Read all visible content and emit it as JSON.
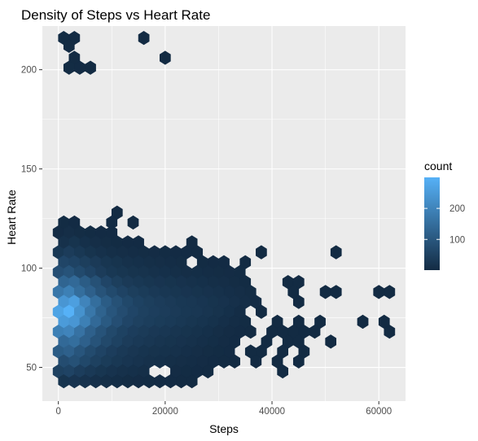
{
  "chart_data": {
    "type": "hexbin",
    "title": "Density of Steps vs Heart Rate",
    "xlabel": "Steps",
    "ylabel": "Heart Rate",
    "xlim": [
      -3000,
      65000
    ],
    "ylim": [
      33,
      222
    ],
    "xticks": [
      0,
      20000,
      40000,
      60000
    ],
    "xtick_labels": [
      "0",
      "20000",
      "40000",
      "60000"
    ],
    "yticks": [
      50,
      100,
      150,
      200
    ],
    "ytick_labels": [
      "50",
      "100",
      "150",
      "200"
    ],
    "grid": true,
    "panel_background": "#ebebeb",
    "grid_color": "#ffffff",
    "legend": {
      "title": "count",
      "position": "right",
      "min": 1,
      "max": 300,
      "breaks": [
        100,
        200
      ],
      "break_labels": [
        "100",
        "200"
      ],
      "low_color": "#132b43",
      "high_color": "#56b1f7"
    },
    "bin_size": {
      "x": 2000,
      "y": 2.5
    },
    "bins": [
      [
        1000,
        216,
        3
      ],
      [
        3000,
        216,
        2
      ],
      [
        2000,
        212,
        1
      ],
      [
        3000,
        206,
        1
      ],
      [
        2000,
        201,
        3
      ],
      [
        4000,
        201,
        2
      ],
      [
        6000,
        201,
        1
      ],
      [
        16000,
        216,
        1
      ],
      [
        20000,
        206,
        1
      ],
      [
        1000,
        123,
        3
      ],
      [
        3000,
        123,
        2
      ],
      [
        11000,
        128,
        1
      ],
      [
        10000,
        123,
        2
      ],
      [
        14000,
        123,
        1
      ],
      [
        0,
        118,
        4
      ],
      [
        2000,
        118,
        8
      ],
      [
        4000,
        118,
        5
      ],
      [
        6000,
        118,
        3
      ],
      [
        8000,
        118,
        2
      ],
      [
        10000,
        118,
        2
      ],
      [
        1000,
        113,
        15
      ],
      [
        3000,
        113,
        20
      ],
      [
        5000,
        113,
        12
      ],
      [
        7000,
        113,
        8
      ],
      [
        9000,
        113,
        5
      ],
      [
        11000,
        113,
        3
      ],
      [
        13000,
        113,
        2
      ],
      [
        15000,
        113,
        2
      ],
      [
        25000,
        113,
        1
      ],
      [
        0,
        108,
        30
      ],
      [
        2000,
        108,
        40
      ],
      [
        4000,
        108,
        30
      ],
      [
        6000,
        108,
        20
      ],
      [
        8000,
        108,
        15
      ],
      [
        10000,
        108,
        10
      ],
      [
        12000,
        108,
        8
      ],
      [
        14000,
        108,
        6
      ],
      [
        16000,
        108,
        5
      ],
      [
        18000,
        108,
        4
      ],
      [
        20000,
        108,
        3
      ],
      [
        22000,
        108,
        2
      ],
      [
        24000,
        108,
        2
      ],
      [
        26000,
        108,
        1
      ],
      [
        38000,
        108,
        1
      ],
      [
        52000,
        108,
        1
      ],
      [
        1000,
        103,
        60
      ],
      [
        3000,
        103,
        55
      ],
      [
        5000,
        103,
        45
      ],
      [
        7000,
        103,
        35
      ],
      [
        9000,
        103,
        25
      ],
      [
        11000,
        103,
        20
      ],
      [
        13000,
        103,
        15
      ],
      [
        15000,
        103,
        12
      ],
      [
        17000,
        103,
        10
      ],
      [
        19000,
        103,
        8
      ],
      [
        21000,
        103,
        6
      ],
      [
        23000,
        103,
        5
      ],
      [
        27000,
        103,
        3
      ],
      [
        29000,
        103,
        2
      ],
      [
        31000,
        103,
        2
      ],
      [
        35000,
        103,
        1
      ],
      [
        0,
        98,
        80
      ],
      [
        2000,
        98,
        90
      ],
      [
        4000,
        98,
        70
      ],
      [
        6000,
        98,
        55
      ],
      [
        8000,
        98,
        40
      ],
      [
        10000,
        98,
        30
      ],
      [
        12000,
        98,
        25
      ],
      [
        14000,
        98,
        20
      ],
      [
        16000,
        98,
        18
      ],
      [
        18000,
        98,
        15
      ],
      [
        20000,
        98,
        12
      ],
      [
        22000,
        98,
        10
      ],
      [
        24000,
        98,
        8
      ],
      [
        26000,
        98,
        7
      ],
      [
        28000,
        98,
        6
      ],
      [
        30000,
        98,
        5
      ],
      [
        32000,
        98,
        4
      ],
      [
        34000,
        98,
        3
      ],
      [
        1000,
        93,
        130
      ],
      [
        3000,
        93,
        140
      ],
      [
        5000,
        93,
        110
      ],
      [
        7000,
        93,
        85
      ],
      [
        9000,
        93,
        60
      ],
      [
        11000,
        93,
        45
      ],
      [
        13000,
        93,
        35
      ],
      [
        15000,
        93,
        30
      ],
      [
        17000,
        93,
        25
      ],
      [
        19000,
        93,
        22
      ],
      [
        21000,
        93,
        20
      ],
      [
        23000,
        93,
        17
      ],
      [
        25000,
        93,
        15
      ],
      [
        27000,
        93,
        12
      ],
      [
        29000,
        93,
        10
      ],
      [
        31000,
        93,
        8
      ],
      [
        33000,
        93,
        5
      ],
      [
        35000,
        93,
        3
      ],
      [
        43000,
        93,
        1
      ],
      [
        45000,
        93,
        1
      ],
      [
        0,
        88,
        170
      ],
      [
        2000,
        88,
        190
      ],
      [
        4000,
        88,
        150
      ],
      [
        6000,
        88,
        120
      ],
      [
        8000,
        88,
        90
      ],
      [
        10000,
        88,
        70
      ],
      [
        12000,
        88,
        55
      ],
      [
        14000,
        88,
        45
      ],
      [
        16000,
        88,
        38
      ],
      [
        18000,
        88,
        32
      ],
      [
        20000,
        88,
        28
      ],
      [
        22000,
        88,
        25
      ],
      [
        24000,
        88,
        22
      ],
      [
        26000,
        88,
        20
      ],
      [
        28000,
        88,
        17
      ],
      [
        30000,
        88,
        14
      ],
      [
        32000,
        88,
        11
      ],
      [
        34000,
        88,
        8
      ],
      [
        36000,
        88,
        5
      ],
      [
        44000,
        88,
        1
      ],
      [
        50000,
        88,
        1
      ],
      [
        52000,
        88,
        1
      ],
      [
        60000,
        88,
        1
      ],
      [
        62000,
        88,
        1
      ],
      [
        1000,
        83,
        240
      ],
      [
        3000,
        83,
        260
      ],
      [
        5000,
        83,
        200
      ],
      [
        7000,
        83,
        150
      ],
      [
        9000,
        83,
        110
      ],
      [
        11000,
        83,
        85
      ],
      [
        13000,
        83,
        65
      ],
      [
        15000,
        83,
        52
      ],
      [
        17000,
        83,
        45
      ],
      [
        19000,
        83,
        40
      ],
      [
        21000,
        83,
        35
      ],
      [
        23000,
        83,
        30
      ],
      [
        25000,
        83,
        27
      ],
      [
        27000,
        83,
        24
      ],
      [
        29000,
        83,
        20
      ],
      [
        31000,
        83,
        17
      ],
      [
        33000,
        83,
        13
      ],
      [
        35000,
        83,
        8
      ],
      [
        37000,
        83,
        4
      ],
      [
        45000,
        83,
        1
      ],
      [
        0,
        78,
        270
      ],
      [
        2000,
        78,
        300
      ],
      [
        4000,
        78,
        230
      ],
      [
        6000,
        78,
        170
      ],
      [
        8000,
        78,
        125
      ],
      [
        10000,
        78,
        95
      ],
      [
        12000,
        78,
        75
      ],
      [
        14000,
        78,
        60
      ],
      [
        16000,
        78,
        50
      ],
      [
        18000,
        78,
        44
      ],
      [
        20000,
        78,
        40
      ],
      [
        22000,
        78,
        35
      ],
      [
        24000,
        78,
        30
      ],
      [
        26000,
        78,
        27
      ],
      [
        28000,
        78,
        23
      ],
      [
        30000,
        78,
        18
      ],
      [
        32000,
        78,
        12
      ],
      [
        34000,
        78,
        6
      ],
      [
        38000,
        78,
        1
      ],
      [
        1000,
        73,
        250
      ],
      [
        3000,
        73,
        240
      ],
      [
        5000,
        73,
        190
      ],
      [
        7000,
        73,
        140
      ],
      [
        9000,
        73,
        105
      ],
      [
        11000,
        73,
        80
      ],
      [
        13000,
        73,
        60
      ],
      [
        15000,
        73,
        50
      ],
      [
        17000,
        73,
        43
      ],
      [
        19000,
        73,
        38
      ],
      [
        21000,
        73,
        34
      ],
      [
        23000,
        73,
        30
      ],
      [
        25000,
        73,
        25
      ],
      [
        27000,
        73,
        21
      ],
      [
        29000,
        73,
        16
      ],
      [
        31000,
        73,
        11
      ],
      [
        33000,
        73,
        6
      ],
      [
        35000,
        73,
        3
      ],
      [
        41000,
        73,
        1
      ],
      [
        45000,
        73,
        1
      ],
      [
        49000,
        73,
        1
      ],
      [
        57000,
        73,
        1
      ],
      [
        61000,
        73,
        1
      ],
      [
        0,
        68,
        190
      ],
      [
        2000,
        68,
        200
      ],
      [
        4000,
        68,
        160
      ],
      [
        6000,
        68,
        120
      ],
      [
        8000,
        68,
        90
      ],
      [
        10000,
        68,
        68
      ],
      [
        12000,
        68,
        52
      ],
      [
        14000,
        68,
        42
      ],
      [
        16000,
        68,
        36
      ],
      [
        18000,
        68,
        31
      ],
      [
        20000,
        68,
        27
      ],
      [
        22000,
        68,
        23
      ],
      [
        24000,
        68,
        20
      ],
      [
        26000,
        68,
        16
      ],
      [
        28000,
        68,
        12
      ],
      [
        30000,
        68,
        8
      ],
      [
        32000,
        68,
        4
      ],
      [
        34000,
        68,
        2
      ],
      [
        36000,
        68,
        1
      ],
      [
        40000,
        68,
        1
      ],
      [
        42000,
        68,
        1
      ],
      [
        44000,
        68,
        1
      ],
      [
        46000,
        68,
        1
      ],
      [
        48000,
        68,
        1
      ],
      [
        62000,
        68,
        1
      ],
      [
        1000,
        63,
        140
      ],
      [
        3000,
        63,
        150
      ],
      [
        5000,
        63,
        120
      ],
      [
        7000,
        63,
        90
      ],
      [
        9000,
        63,
        68
      ],
      [
        11000,
        63,
        52
      ],
      [
        13000,
        63,
        40
      ],
      [
        15000,
        63,
        32
      ],
      [
        17000,
        63,
        27
      ],
      [
        19000,
        63,
        23
      ],
      [
        21000,
        63,
        20
      ],
      [
        23000,
        63,
        17
      ],
      [
        25000,
        63,
        14
      ],
      [
        27000,
        63,
        11
      ],
      [
        29000,
        63,
        7
      ],
      [
        31000,
        63,
        4
      ],
      [
        33000,
        63,
        2
      ],
      [
        39000,
        63,
        1
      ],
      [
        43000,
        63,
        1
      ],
      [
        45000,
        63,
        1
      ],
      [
        51000,
        63,
        1
      ],
      [
        0,
        58,
        110
      ],
      [
        2000,
        58,
        120
      ],
      [
        4000,
        58,
        95
      ],
      [
        6000,
        58,
        72
      ],
      [
        8000,
        58,
        55
      ],
      [
        10000,
        58,
        42
      ],
      [
        12000,
        58,
        33
      ],
      [
        14000,
        58,
        26
      ],
      [
        16000,
        58,
        21
      ],
      [
        18000,
        58,
        18
      ],
      [
        20000,
        58,
        16
      ],
      [
        22000,
        58,
        14
      ],
      [
        24000,
        58,
        11
      ],
      [
        26000,
        58,
        8
      ],
      [
        28000,
        58,
        5
      ],
      [
        30000,
        58,
        3
      ],
      [
        32000,
        58,
        2
      ],
      [
        36000,
        58,
        1
      ],
      [
        38000,
        58,
        1
      ],
      [
        42000,
        58,
        1
      ],
      [
        46000,
        58,
        1
      ],
      [
        1000,
        53,
        75
      ],
      [
        3000,
        53,
        85
      ],
      [
        5000,
        53,
        65
      ],
      [
        7000,
        53,
        50
      ],
      [
        9000,
        53,
        38
      ],
      [
        11000,
        53,
        30
      ],
      [
        13000,
        53,
        24
      ],
      [
        15000,
        53,
        19
      ],
      [
        17000,
        53,
        15
      ],
      [
        19000,
        53,
        12
      ],
      [
        21000,
        53,
        10
      ],
      [
        23000,
        53,
        8
      ],
      [
        25000,
        53,
        6
      ],
      [
        27000,
        53,
        4
      ],
      [
        29000,
        53,
        2
      ],
      [
        31000,
        53,
        1
      ],
      [
        33000,
        53,
        1
      ],
      [
        37000,
        53,
        1
      ],
      [
        41000,
        53,
        1
      ],
      [
        45000,
        53,
        1
      ],
      [
        0,
        48,
        50
      ],
      [
        2000,
        48,
        55
      ],
      [
        4000,
        48,
        42
      ],
      [
        6000,
        48,
        32
      ],
      [
        8000,
        48,
        25
      ],
      [
        10000,
        48,
        19
      ],
      [
        12000,
        48,
        15
      ],
      [
        14000,
        48,
        12
      ],
      [
        16000,
        48,
        9
      ],
      [
        22000,
        48,
        4
      ],
      [
        24000,
        48,
        3
      ],
      [
        26000,
        48,
        2
      ],
      [
        28000,
        48,
        1
      ],
      [
        42000,
        48,
        1
      ],
      [
        1000,
        43,
        20
      ],
      [
        3000,
        43,
        22
      ],
      [
        5000,
        43,
        17
      ],
      [
        7000,
        43,
        13
      ],
      [
        9000,
        43,
        10
      ],
      [
        11000,
        43,
        7
      ],
      [
        13000,
        43,
        5
      ],
      [
        15000,
        43,
        4
      ],
      [
        17000,
        43,
        3
      ],
      [
        19000,
        43,
        2
      ],
      [
        21000,
        43,
        2
      ],
      [
        23000,
        43,
        1
      ],
      [
        25000,
        43,
        1
      ]
    ]
  }
}
